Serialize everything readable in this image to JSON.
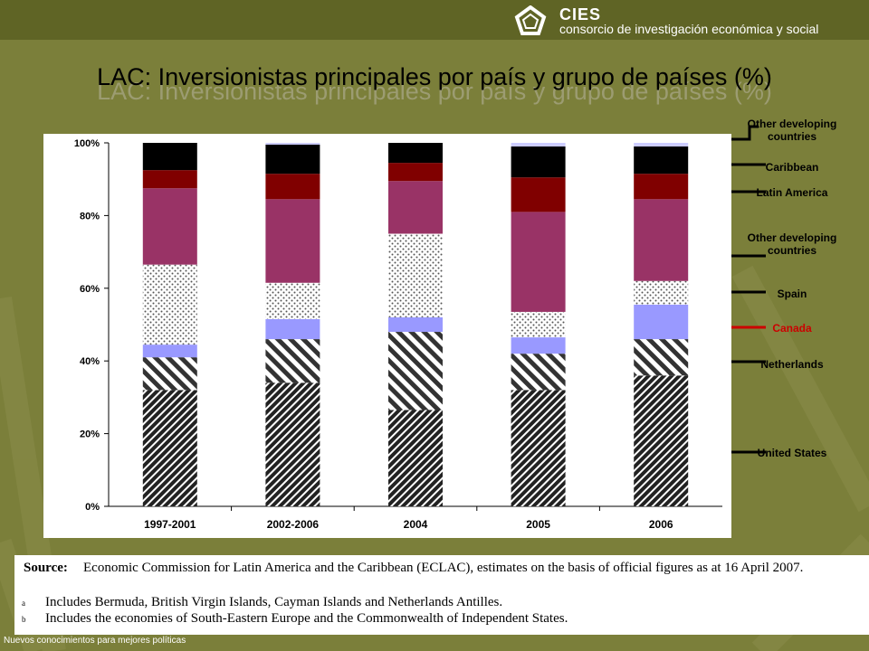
{
  "header": {
    "org_short": "CIES",
    "org_full": "consorcio de investigación económica y social",
    "footer": "Nuevos conocimientos para mejores políticas"
  },
  "title": "LAC: Inversionistas principales por país y grupo de países (%)",
  "colors": {
    "header": "#5f6425",
    "background": "#7b7f3a",
    "united_states": "#222222",
    "netherlands": "#444444",
    "canada": "#9999ff",
    "spain": "#dddddd",
    "other_dev_1": "#993366",
    "latin_america": "#800000",
    "caribbean": "#000000",
    "other_dev_2": "#ccccff",
    "canada_arrow": "#cc0000"
  },
  "chart_data": {
    "type": "bar",
    "stacked": true,
    "categories": [
      "1997-2001",
      "2002-2006",
      "2004",
      "2005",
      "2006"
    ],
    "ylim": [
      0,
      100
    ],
    "yticks": [
      "0%",
      "20%",
      "40%",
      "60%",
      "80%",
      "100%"
    ],
    "series": [
      {
        "name": "United States",
        "values": [
          32,
          34,
          26.5,
          32,
          36
        ]
      },
      {
        "name": "Netherlands",
        "values": [
          9,
          12,
          21.5,
          10,
          10
        ]
      },
      {
        "name": "Canada",
        "values": [
          3.5,
          5.5,
          4,
          4.5,
          9.5
        ]
      },
      {
        "name": "Spain",
        "values": [
          22,
          10,
          23,
          7,
          6.5
        ]
      },
      {
        "name": "Other developing countries",
        "values": [
          21,
          23,
          14.5,
          27.5,
          22.5
        ]
      },
      {
        "name": "Latin America",
        "values": [
          5,
          7,
          5,
          9.5,
          7
        ]
      },
      {
        "name": "Caribbean",
        "values": [
          7.5,
          8,
          5.5,
          8.5,
          7.5
        ]
      },
      {
        "name": "Other developing countries",
        "values": [
          0,
          0.5,
          0,
          1,
          1
        ]
      }
    ],
    "legend_labels": [
      {
        "text": "Other developing countries",
        "color": "#000000"
      },
      {
        "text": "Caribbean",
        "color": "#000000"
      },
      {
        "text": "Latin America",
        "color": "#000000"
      },
      {
        "text": "Other developing countries",
        "color": "#000000"
      },
      {
        "text": "Spain",
        "color": "#000000"
      },
      {
        "text": "Canada",
        "color": "#cc0000"
      },
      {
        "text": "Netherlands",
        "color": "#000000"
      },
      {
        "text": "United States",
        "color": "#000000"
      }
    ]
  },
  "source": {
    "label": "Source",
    "text": "Economic Commission for Latin America and the Caribbean (ECLAC), estimates on the basis of official figures as at 16 April 2007.",
    "notes": [
      {
        "mark": "a",
        "text": "Includes Bermuda, British Virgin Islands, Cayman Islands and Netherlands Antilles."
      },
      {
        "mark": "b",
        "text": "Includes the economies of South-Eastern Europe and the Commonwealth of Independent States."
      }
    ]
  }
}
